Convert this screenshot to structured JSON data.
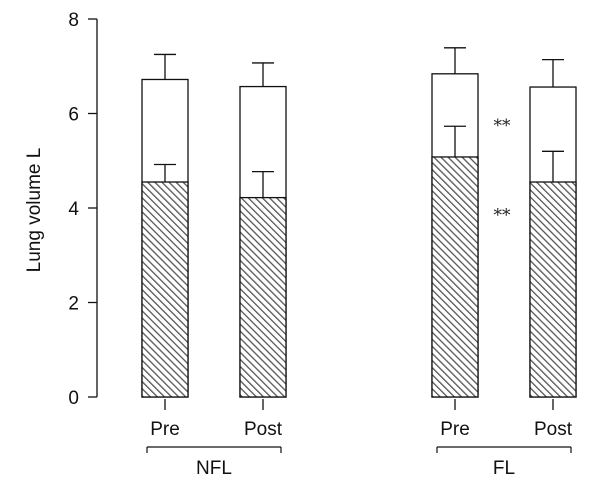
{
  "chart_data": {
    "type": "bar",
    "stacked": true,
    "ylabel": "Lung volume  L",
    "ylim": [
      0,
      8
    ],
    "yticks": [
      0,
      2,
      4,
      6,
      8
    ],
    "grid": false,
    "categories": [
      "Pre",
      "Post",
      "Pre",
      "Post"
    ],
    "groups": [
      {
        "label": "NFL",
        "categories": [
          0,
          1
        ]
      },
      {
        "label": "FL",
        "categories": [
          2,
          3
        ]
      }
    ],
    "series": [
      {
        "pattern": "hatched",
        "values": [
          4.55,
          4.22,
          5.08,
          4.55
        ],
        "error": [
          0.37,
          0.55,
          0.65,
          0.65
        ]
      },
      {
        "pattern": "white",
        "totals": [
          6.72,
          6.57,
          6.84,
          6.56
        ],
        "error": [
          0.53,
          0.5,
          0.55,
          0.58
        ]
      }
    ],
    "annotations": [
      {
        "text": "**",
        "category": 2,
        "y": 5.8
      },
      {
        "text": "**",
        "category": 2,
        "y": 3.9
      }
    ]
  }
}
